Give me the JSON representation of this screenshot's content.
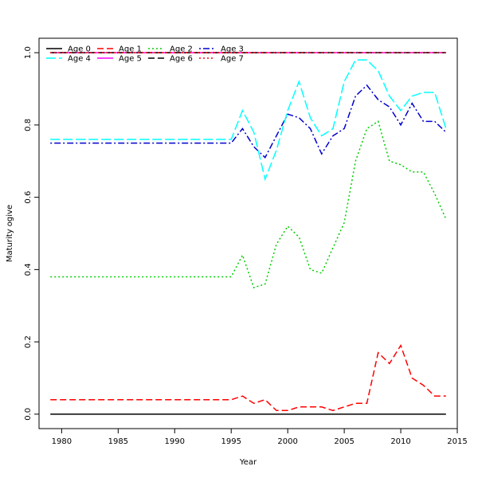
{
  "chart_data": {
    "type": "line",
    "title": "",
    "xlabel": "Year",
    "ylabel": "Maturity ogive",
    "xlim": [
      1978,
      2015
    ],
    "ylim": [
      -0.04,
      1.04
    ],
    "x_ticks": [
      1980,
      1985,
      1990,
      1995,
      2000,
      2005,
      2010,
      2015
    ],
    "y_ticks": [
      "0.0",
      "0.2",
      "0.4",
      "0.6",
      "0.8",
      "1.0"
    ],
    "grid": false,
    "legend_position": "top-left",
    "x": [
      1979,
      1980,
      1981,
      1982,
      1983,
      1984,
      1985,
      1986,
      1987,
      1988,
      1989,
      1990,
      1991,
      1992,
      1993,
      1994,
      1995,
      1996,
      1997,
      1998,
      1999,
      2000,
      2001,
      2002,
      2003,
      2004,
      2005,
      2006,
      2007,
      2008,
      2009,
      2010,
      2011,
      2012,
      2013,
      2014
    ],
    "series": [
      {
        "name": "Age 0",
        "color": "#000000",
        "dash": "solid",
        "values": [
          0,
          0,
          0,
          0,
          0,
          0,
          0,
          0,
          0,
          0,
          0,
          0,
          0,
          0,
          0,
          0,
          0,
          0,
          0,
          0,
          0,
          0,
          0,
          0,
          0,
          0,
          0,
          0,
          0,
          0,
          0,
          0,
          0,
          0,
          0,
          0
        ]
      },
      {
        "name": "Age 1",
        "color": "#ff0000",
        "dash": "dashed",
        "values": [
          0.04,
          0.04,
          0.04,
          0.04,
          0.04,
          0.04,
          0.04,
          0.04,
          0.04,
          0.04,
          0.04,
          0.04,
          0.04,
          0.04,
          0.04,
          0.04,
          0.04,
          0.05,
          0.03,
          0.04,
          0.01,
          0.01,
          0.02,
          0.02,
          0.02,
          0.01,
          0.02,
          0.03,
          0.03,
          0.17,
          0.14,
          0.19,
          0.1,
          0.08,
          0.05,
          0.05
        ]
      },
      {
        "name": "Age 2",
        "color": "#00cd00",
        "dash": "dotted",
        "values": [
          0.38,
          0.38,
          0.38,
          0.38,
          0.38,
          0.38,
          0.38,
          0.38,
          0.38,
          0.38,
          0.38,
          0.38,
          0.38,
          0.38,
          0.38,
          0.38,
          0.38,
          0.44,
          0.35,
          0.36,
          0.47,
          0.52,
          0.49,
          0.4,
          0.39,
          0.46,
          0.53,
          0.7,
          0.79,
          0.81,
          0.7,
          0.69,
          0.67,
          0.67,
          0.61,
          0.54
        ]
      },
      {
        "name": "Age 3",
        "color": "#0000cd",
        "dash": "dotdash",
        "values": [
          0.75,
          0.75,
          0.75,
          0.75,
          0.75,
          0.75,
          0.75,
          0.75,
          0.75,
          0.75,
          0.75,
          0.75,
          0.75,
          0.75,
          0.75,
          0.75,
          0.75,
          0.79,
          0.74,
          0.71,
          0.77,
          0.83,
          0.82,
          0.79,
          0.72,
          0.77,
          0.79,
          0.88,
          0.91,
          0.87,
          0.85,
          0.8,
          0.86,
          0.81,
          0.81,
          0.78
        ]
      },
      {
        "name": "Age 4",
        "color": "#00ffff",
        "dash": "longdash",
        "values": [
          0.76,
          0.76,
          0.76,
          0.76,
          0.76,
          0.76,
          0.76,
          0.76,
          0.76,
          0.76,
          0.76,
          0.76,
          0.76,
          0.76,
          0.76,
          0.76,
          0.76,
          0.84,
          0.78,
          0.65,
          0.73,
          0.84,
          0.92,
          0.82,
          0.77,
          0.79,
          0.92,
          0.98,
          0.98,
          0.95,
          0.88,
          0.84,
          0.88,
          0.89,
          0.89,
          0.79
        ]
      },
      {
        "name": "Age 5",
        "color": "#ff00ff",
        "dash": "solid",
        "values": [
          1,
          1,
          1,
          1,
          1,
          1,
          1,
          1,
          1,
          1,
          1,
          1,
          1,
          1,
          1,
          1,
          1,
          1,
          1,
          1,
          1,
          1,
          1,
          1,
          1,
          1,
          1,
          1,
          1,
          1,
          1,
          1,
          1,
          1,
          1,
          1
        ]
      },
      {
        "name": "Age 6",
        "color": "#000000",
        "dash": "dashed",
        "values": [
          1,
          1,
          1,
          1,
          1,
          1,
          1,
          1,
          1,
          1,
          1,
          1,
          1,
          1,
          1,
          1,
          1,
          1,
          1,
          1,
          1,
          1,
          1,
          1,
          1,
          1,
          1,
          1,
          1,
          1,
          1,
          1,
          1,
          1,
          1,
          1
        ]
      },
      {
        "name": "Age 7",
        "color": "#ff0000",
        "dash": "dotted",
        "values": [
          1,
          1,
          1,
          1,
          1,
          1,
          1,
          1,
          1,
          1,
          1,
          1,
          1,
          1,
          1,
          1,
          1,
          1,
          1,
          1,
          1,
          1,
          1,
          1,
          1,
          1,
          1,
          1,
          1,
          1,
          1,
          1,
          1,
          1,
          1,
          1
        ]
      }
    ]
  }
}
